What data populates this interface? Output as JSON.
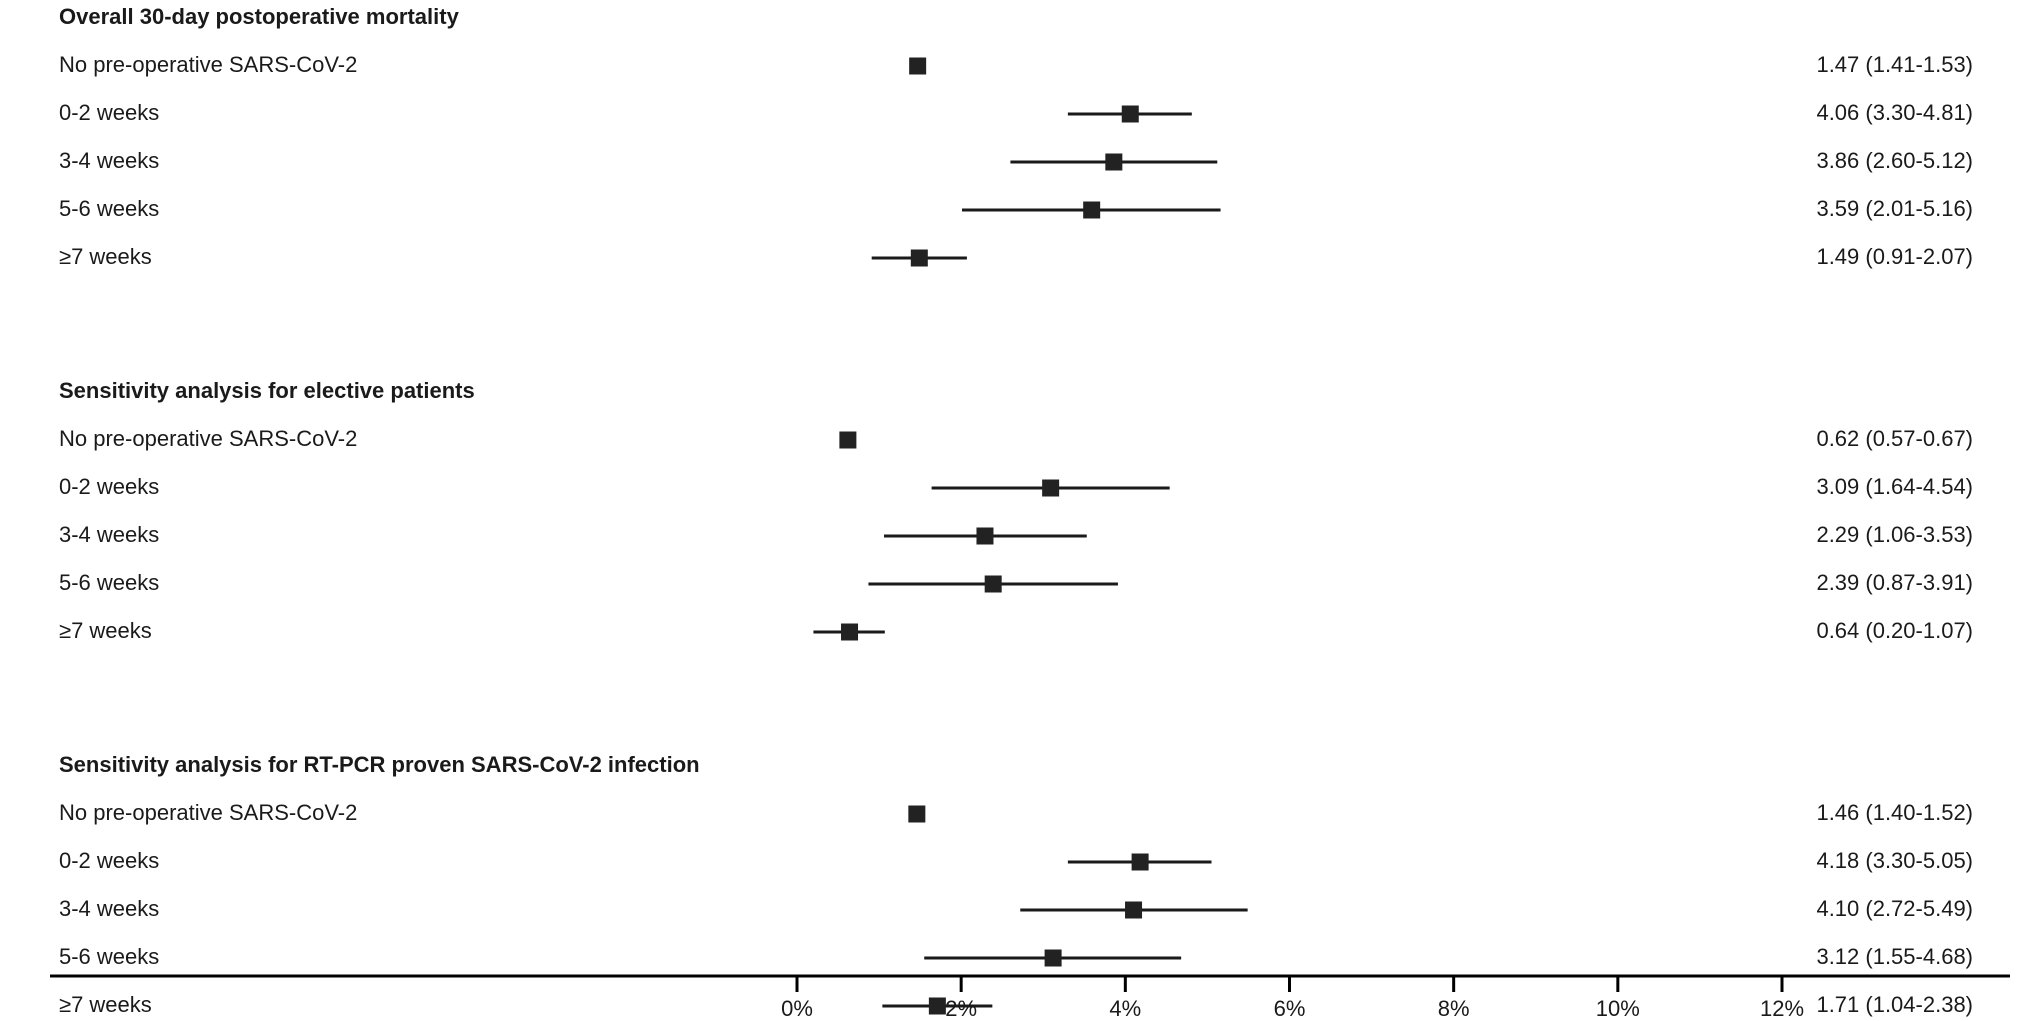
{
  "chart_data": {
    "type": "forest",
    "xlim": [
      0,
      12
    ],
    "x_ticks": [
      {
        "value": 0,
        "label": "0%"
      },
      {
        "value": 2,
        "label": "2%"
      },
      {
        "value": 4,
        "label": "4%"
      },
      {
        "value": 6,
        "label": "6%"
      },
      {
        "value": 8,
        "label": "8%"
      },
      {
        "value": 10,
        "label": "10%"
      },
      {
        "value": 12,
        "label": "12%"
      }
    ],
    "grid": false,
    "groups": [
      {
        "title": "Overall 30-day postoperative mortality",
        "rows": [
          {
            "label": "No pre-operative SARS-CoV-2",
            "est": 1.47,
            "lo": 1.41,
            "hi": 1.53,
            "text": "1.47 (1.41-1.53)"
          },
          {
            "label": "0-2 weeks",
            "est": 4.06,
            "lo": 3.3,
            "hi": 4.81,
            "text": "4.06 (3.30-4.81)"
          },
          {
            "label": "3-4 weeks",
            "est": 3.86,
            "lo": 2.6,
            "hi": 5.12,
            "text": "3.86 (2.60-5.12)"
          },
          {
            "label": "5-6 weeks",
            "est": 3.59,
            "lo": 2.01,
            "hi": 5.16,
            "text": "3.59 (2.01-5.16)"
          },
          {
            "label": "≥7 weeks",
            "est": 1.49,
            "lo": 0.91,
            "hi": 2.07,
            "text": "1.49 (0.91-2.07)"
          }
        ]
      },
      {
        "title": "Sensitivity analysis for elective patients",
        "rows": [
          {
            "label": "No pre-operative SARS-CoV-2",
            "est": 0.62,
            "lo": 0.57,
            "hi": 0.67,
            "text": "0.62 (0.57-0.67)"
          },
          {
            "label": "0-2 weeks",
            "est": 3.09,
            "lo": 1.64,
            "hi": 4.54,
            "text": "3.09 (1.64-4.54)"
          },
          {
            "label": "3-4 weeks",
            "est": 2.29,
            "lo": 1.06,
            "hi": 3.53,
            "text": "2.29 (1.06-3.53)"
          },
          {
            "label": "5-6 weeks",
            "est": 2.39,
            "lo": 0.87,
            "hi": 3.91,
            "text": "2.39 (0.87-3.91)"
          },
          {
            "label": "≥7 weeks",
            "est": 0.64,
            "lo": 0.2,
            "hi": 1.07,
            "text": "0.64 (0.20-1.07)"
          }
        ]
      },
      {
        "title": "Sensitivity analysis for RT-PCR proven SARS-CoV-2 infection",
        "rows": [
          {
            "label": "No pre-operative SARS-CoV-2",
            "est": 1.46,
            "lo": 1.4,
            "hi": 1.52,
            "text": "1.46 (1.40-1.52)"
          },
          {
            "label": "0-2 weeks",
            "est": 4.18,
            "lo": 3.3,
            "hi": 5.05,
            "text": "4.18 (3.30-5.05)"
          },
          {
            "label": "3-4 weeks",
            "est": 4.1,
            "lo": 2.72,
            "hi": 5.49,
            "text": "4.10 (2.72-5.49)"
          },
          {
            "label": "5-6 weeks",
            "est": 3.12,
            "lo": 1.55,
            "hi": 4.68,
            "text": "3.12 (1.55-4.68)"
          },
          {
            "label": "≥7 weeks",
            "est": 1.71,
            "lo": 1.04,
            "hi": 2.38,
            "text": "1.71 (1.04-2.38)"
          }
        ]
      }
    ]
  },
  "colors": {
    "marker": "#222222",
    "line": "#1a1a1a",
    "axis": "#000000",
    "text": "#1a1a1a"
  }
}
